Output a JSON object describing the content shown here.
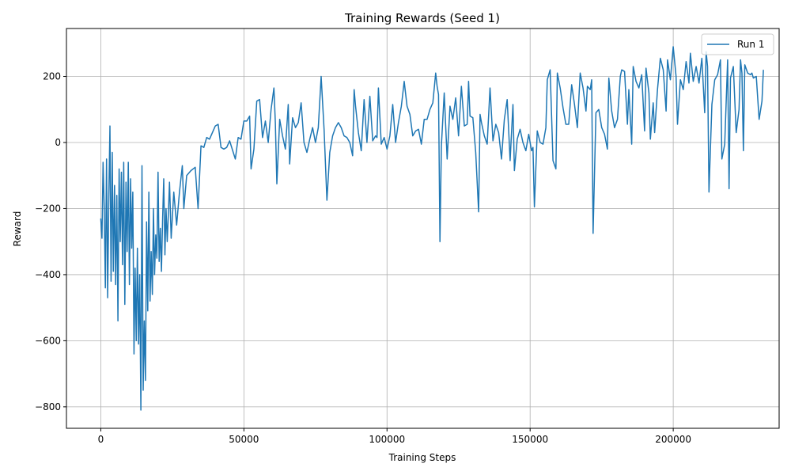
{
  "chart_data": {
    "type": "line",
    "title": "Training Rewards (Seed 1)",
    "xlabel": "Training Steps",
    "ylabel": "Reward",
    "xlim": [
      -12000,
      237000
    ],
    "ylim": [
      -865,
      345
    ],
    "xticks": [
      0,
      50000,
      100000,
      150000,
      200000
    ],
    "xtick_labels": [
      "0",
      "50000",
      "100000",
      "150000",
      "200000"
    ],
    "yticks": [
      -800,
      -600,
      -400,
      -200,
      0,
      200
    ],
    "ytick_labels": [
      "−800",
      "−600",
      "−400",
      "−200",
      "0",
      "200"
    ],
    "grid": true,
    "legend_position": "top-right",
    "colors": {
      "series": "#1f77b4",
      "grid": "#b0b0b0",
      "axes": "#000000"
    },
    "series": [
      {
        "name": "Run 1",
        "points": [
          [
            0,
            -230
          ],
          [
            400,
            -290
          ],
          [
            800,
            -60
          ],
          [
            1200,
            -200
          ],
          [
            1600,
            -440
          ],
          [
            2000,
            -50
          ],
          [
            2400,
            -470
          ],
          [
            2800,
            -160
          ],
          [
            3200,
            50
          ],
          [
            3600,
            -420
          ],
          [
            4000,
            -30
          ],
          [
            4400,
            -390
          ],
          [
            4800,
            -130
          ],
          [
            5200,
            -430
          ],
          [
            5600,
            -160
          ],
          [
            6000,
            -540
          ],
          [
            6400,
            -80
          ],
          [
            6800,
            -300
          ],
          [
            7200,
            -90
          ],
          [
            7600,
            -370
          ],
          [
            8000,
            -60
          ],
          [
            8400,
            -490
          ],
          [
            8800,
            -120
          ],
          [
            9200,
            -330
          ],
          [
            9600,
            -60
          ],
          [
            10000,
            -430
          ],
          [
            10400,
            -110
          ],
          [
            10800,
            -320
          ],
          [
            11200,
            -150
          ],
          [
            11600,
            -640
          ],
          [
            12000,
            -380
          ],
          [
            12400,
            -600
          ],
          [
            12800,
            -320
          ],
          [
            13200,
            -610
          ],
          [
            13600,
            -400
          ],
          [
            14000,
            -810
          ],
          [
            14400,
            -70
          ],
          [
            14800,
            -750
          ],
          [
            15200,
            -540
          ],
          [
            15600,
            -720
          ],
          [
            16000,
            -240
          ],
          [
            16400,
            -510
          ],
          [
            16800,
            -150
          ],
          [
            17200,
            -480
          ],
          [
            17600,
            -330
          ],
          [
            18000,
            -460
          ],
          [
            18400,
            -200
          ],
          [
            18800,
            -400
          ],
          [
            19200,
            -280
          ],
          [
            19600,
            -350
          ],
          [
            20000,
            -90
          ],
          [
            20400,
            -360
          ],
          [
            20800,
            -260
          ],
          [
            21200,
            -390
          ],
          [
            21600,
            -230
          ],
          [
            22000,
            -110
          ],
          [
            22400,
            -340
          ],
          [
            22800,
            -200
          ],
          [
            23200,
            -300
          ],
          [
            23600,
            -220
          ],
          [
            24000,
            -120
          ],
          [
            24600,
            -290
          ],
          [
            25500,
            -150
          ],
          [
            26500,
            -250
          ],
          [
            27500,
            -150
          ],
          [
            28500,
            -70
          ],
          [
            29000,
            -200
          ],
          [
            30000,
            -100
          ],
          [
            31500,
            -85
          ],
          [
            33000,
            -75
          ],
          [
            34000,
            -200
          ],
          [
            35000,
            -10
          ],
          [
            36000,
            -15
          ],
          [
            37000,
            15
          ],
          [
            38000,
            10
          ],
          [
            40000,
            50
          ],
          [
            41000,
            55
          ],
          [
            42000,
            -15
          ],
          [
            43000,
            -20
          ],
          [
            44000,
            -15
          ],
          [
            45000,
            5
          ],
          [
            47000,
            -50
          ],
          [
            48000,
            15
          ],
          [
            49000,
            10
          ],
          [
            50000,
            65
          ],
          [
            51000,
            65
          ],
          [
            52000,
            80
          ],
          [
            52500,
            -80
          ],
          [
            53500,
            -20
          ],
          [
            54500,
            125
          ],
          [
            55500,
            130
          ],
          [
            56500,
            15
          ],
          [
            57500,
            65
          ],
          [
            58500,
            0
          ],
          [
            59500,
            100
          ],
          [
            60500,
            165
          ],
          [
            61000,
            60
          ],
          [
            61500,
            -125
          ],
          [
            62500,
            70
          ],
          [
            63500,
            20
          ],
          [
            64500,
            -20
          ],
          [
            65500,
            115
          ],
          [
            66000,
            -65
          ],
          [
            67000,
            75
          ],
          [
            68000,
            45
          ],
          [
            69000,
            60
          ],
          [
            70000,
            120
          ],
          [
            71000,
            0
          ],
          [
            72000,
            -30
          ],
          [
            73000,
            10
          ],
          [
            74000,
            45
          ],
          [
            75000,
            0
          ],
          [
            76000,
            45
          ],
          [
            77000,
            200
          ],
          [
            78000,
            40
          ],
          [
            79000,
            -175
          ],
          [
            80000,
            -30
          ],
          [
            81000,
            20
          ],
          [
            82000,
            45
          ],
          [
            83000,
            60
          ],
          [
            84000,
            45
          ],
          [
            85000,
            20
          ],
          [
            86000,
            15
          ],
          [
            87000,
            0
          ],
          [
            88000,
            -40
          ],
          [
            88500,
            160
          ],
          [
            89000,
            110
          ],
          [
            90000,
            30
          ],
          [
            91000,
            -25
          ],
          [
            92000,
            130
          ],
          [
            93000,
            0
          ],
          [
            94000,
            140
          ],
          [
            95000,
            5
          ],
          [
            96000,
            20
          ],
          [
            96500,
            15
          ],
          [
            97000,
            165
          ],
          [
            98000,
            -5
          ],
          [
            99000,
            15
          ],
          [
            100000,
            -20
          ],
          [
            101000,
            20
          ],
          [
            102000,
            115
          ],
          [
            103000,
            0
          ],
          [
            104000,
            60
          ],
          [
            105000,
            110
          ],
          [
            106000,
            185
          ],
          [
            107000,
            110
          ],
          [
            108000,
            85
          ],
          [
            109000,
            20
          ],
          [
            110000,
            35
          ],
          [
            111000,
            40
          ],
          [
            112000,
            -5
          ],
          [
            113000,
            70
          ],
          [
            114000,
            70
          ],
          [
            115000,
            100
          ],
          [
            116000,
            120
          ],
          [
            117000,
            210
          ],
          [
            117500,
            170
          ],
          [
            118000,
            145
          ],
          [
            118500,
            -300
          ],
          [
            119000,
            -10
          ],
          [
            120000,
            150
          ],
          [
            121000,
            -50
          ],
          [
            122000,
            110
          ],
          [
            123000,
            70
          ],
          [
            124000,
            135
          ],
          [
            125000,
            20
          ],
          [
            126000,
            170
          ],
          [
            127000,
            50
          ],
          [
            128000,
            55
          ],
          [
            128500,
            185
          ],
          [
            129000,
            80
          ],
          [
            130000,
            75
          ],
          [
            131000,
            -30
          ],
          [
            132000,
            -210
          ],
          [
            132500,
            85
          ],
          [
            133000,
            60
          ],
          [
            134000,
            20
          ],
          [
            135000,
            -5
          ],
          [
            136000,
            165
          ],
          [
            137000,
            5
          ],
          [
            138000,
            55
          ],
          [
            139000,
            30
          ],
          [
            140000,
            -50
          ],
          [
            141000,
            70
          ],
          [
            142000,
            130
          ],
          [
            143000,
            -55
          ],
          [
            144000,
            115
          ],
          [
            144500,
            -85
          ],
          [
            145500,
            10
          ],
          [
            146500,
            40
          ],
          [
            147500,
            0
          ],
          [
            148500,
            -25
          ],
          [
            149500,
            25
          ],
          [
            150500,
            -25
          ],
          [
            151000,
            -15
          ],
          [
            151500,
            -195
          ],
          [
            152500,
            35
          ],
          [
            153500,
            0
          ],
          [
            154500,
            -5
          ],
          [
            155500,
            45
          ],
          [
            156000,
            190
          ],
          [
            157000,
            220
          ],
          [
            158000,
            -55
          ],
          [
            159000,
            -80
          ],
          [
            159500,
            210
          ],
          [
            160500,
            165
          ],
          [
            161500,
            105
          ],
          [
            162500,
            55
          ],
          [
            163500,
            55
          ],
          [
            164500,
            175
          ],
          [
            165500,
            115
          ],
          [
            166500,
            45
          ],
          [
            167500,
            210
          ],
          [
            168500,
            165
          ],
          [
            169500,
            95
          ],
          [
            170000,
            170
          ],
          [
            171000,
            160
          ],
          [
            171500,
            190
          ],
          [
            172000,
            -275
          ],
          [
            173000,
            90
          ],
          [
            174000,
            100
          ],
          [
            175000,
            45
          ],
          [
            176000,
            25
          ],
          [
            177000,
            -20
          ],
          [
            177500,
            195
          ],
          [
            178500,
            95
          ],
          [
            179500,
            45
          ],
          [
            180500,
            70
          ],
          [
            181500,
            200
          ],
          [
            182000,
            220
          ],
          [
            183000,
            215
          ],
          [
            184000,
            55
          ],
          [
            184500,
            160
          ],
          [
            185500,
            -5
          ],
          [
            186000,
            230
          ],
          [
            187000,
            185
          ],
          [
            188000,
            165
          ],
          [
            189000,
            205
          ],
          [
            190000,
            35
          ],
          [
            190500,
            225
          ],
          [
            191500,
            150
          ],
          [
            192000,
            10
          ],
          [
            193000,
            120
          ],
          [
            193500,
            30
          ],
          [
            194500,
            160
          ],
          [
            195500,
            255
          ],
          [
            196500,
            220
          ],
          [
            197500,
            95
          ],
          [
            198000,
            250
          ],
          [
            199000,
            190
          ],
          [
            200000,
            290
          ],
          [
            201000,
            200
          ],
          [
            201500,
            55
          ],
          [
            202500,
            190
          ],
          [
            203500,
            160
          ],
          [
            204500,
            245
          ],
          [
            205500,
            180
          ],
          [
            206000,
            270
          ],
          [
            207000,
            185
          ],
          [
            208000,
            230
          ],
          [
            209000,
            180
          ],
          [
            210000,
            255
          ],
          [
            211000,
            90
          ],
          [
            211500,
            275
          ],
          [
            212000,
            230
          ],
          [
            212500,
            -150
          ],
          [
            213500,
            115
          ],
          [
            214500,
            190
          ],
          [
            215500,
            205
          ],
          [
            216500,
            250
          ],
          [
            217000,
            -50
          ],
          [
            218000,
            -5
          ],
          [
            219000,
            250
          ],
          [
            219500,
            -140
          ],
          [
            220000,
            195
          ],
          [
            221000,
            230
          ],
          [
            222000,
            30
          ],
          [
            223000,
            100
          ],
          [
            223500,
            250
          ],
          [
            224000,
            210
          ],
          [
            224500,
            -25
          ],
          [
            225000,
            235
          ],
          [
            226000,
            210
          ],
          [
            227000,
            205
          ],
          [
            227500,
            210
          ],
          [
            228000,
            195
          ],
          [
            229000,
            200
          ],
          [
            230000,
            70
          ],
          [
            231000,
            125
          ],
          [
            231500,
            220
          ]
        ]
      }
    ]
  }
}
